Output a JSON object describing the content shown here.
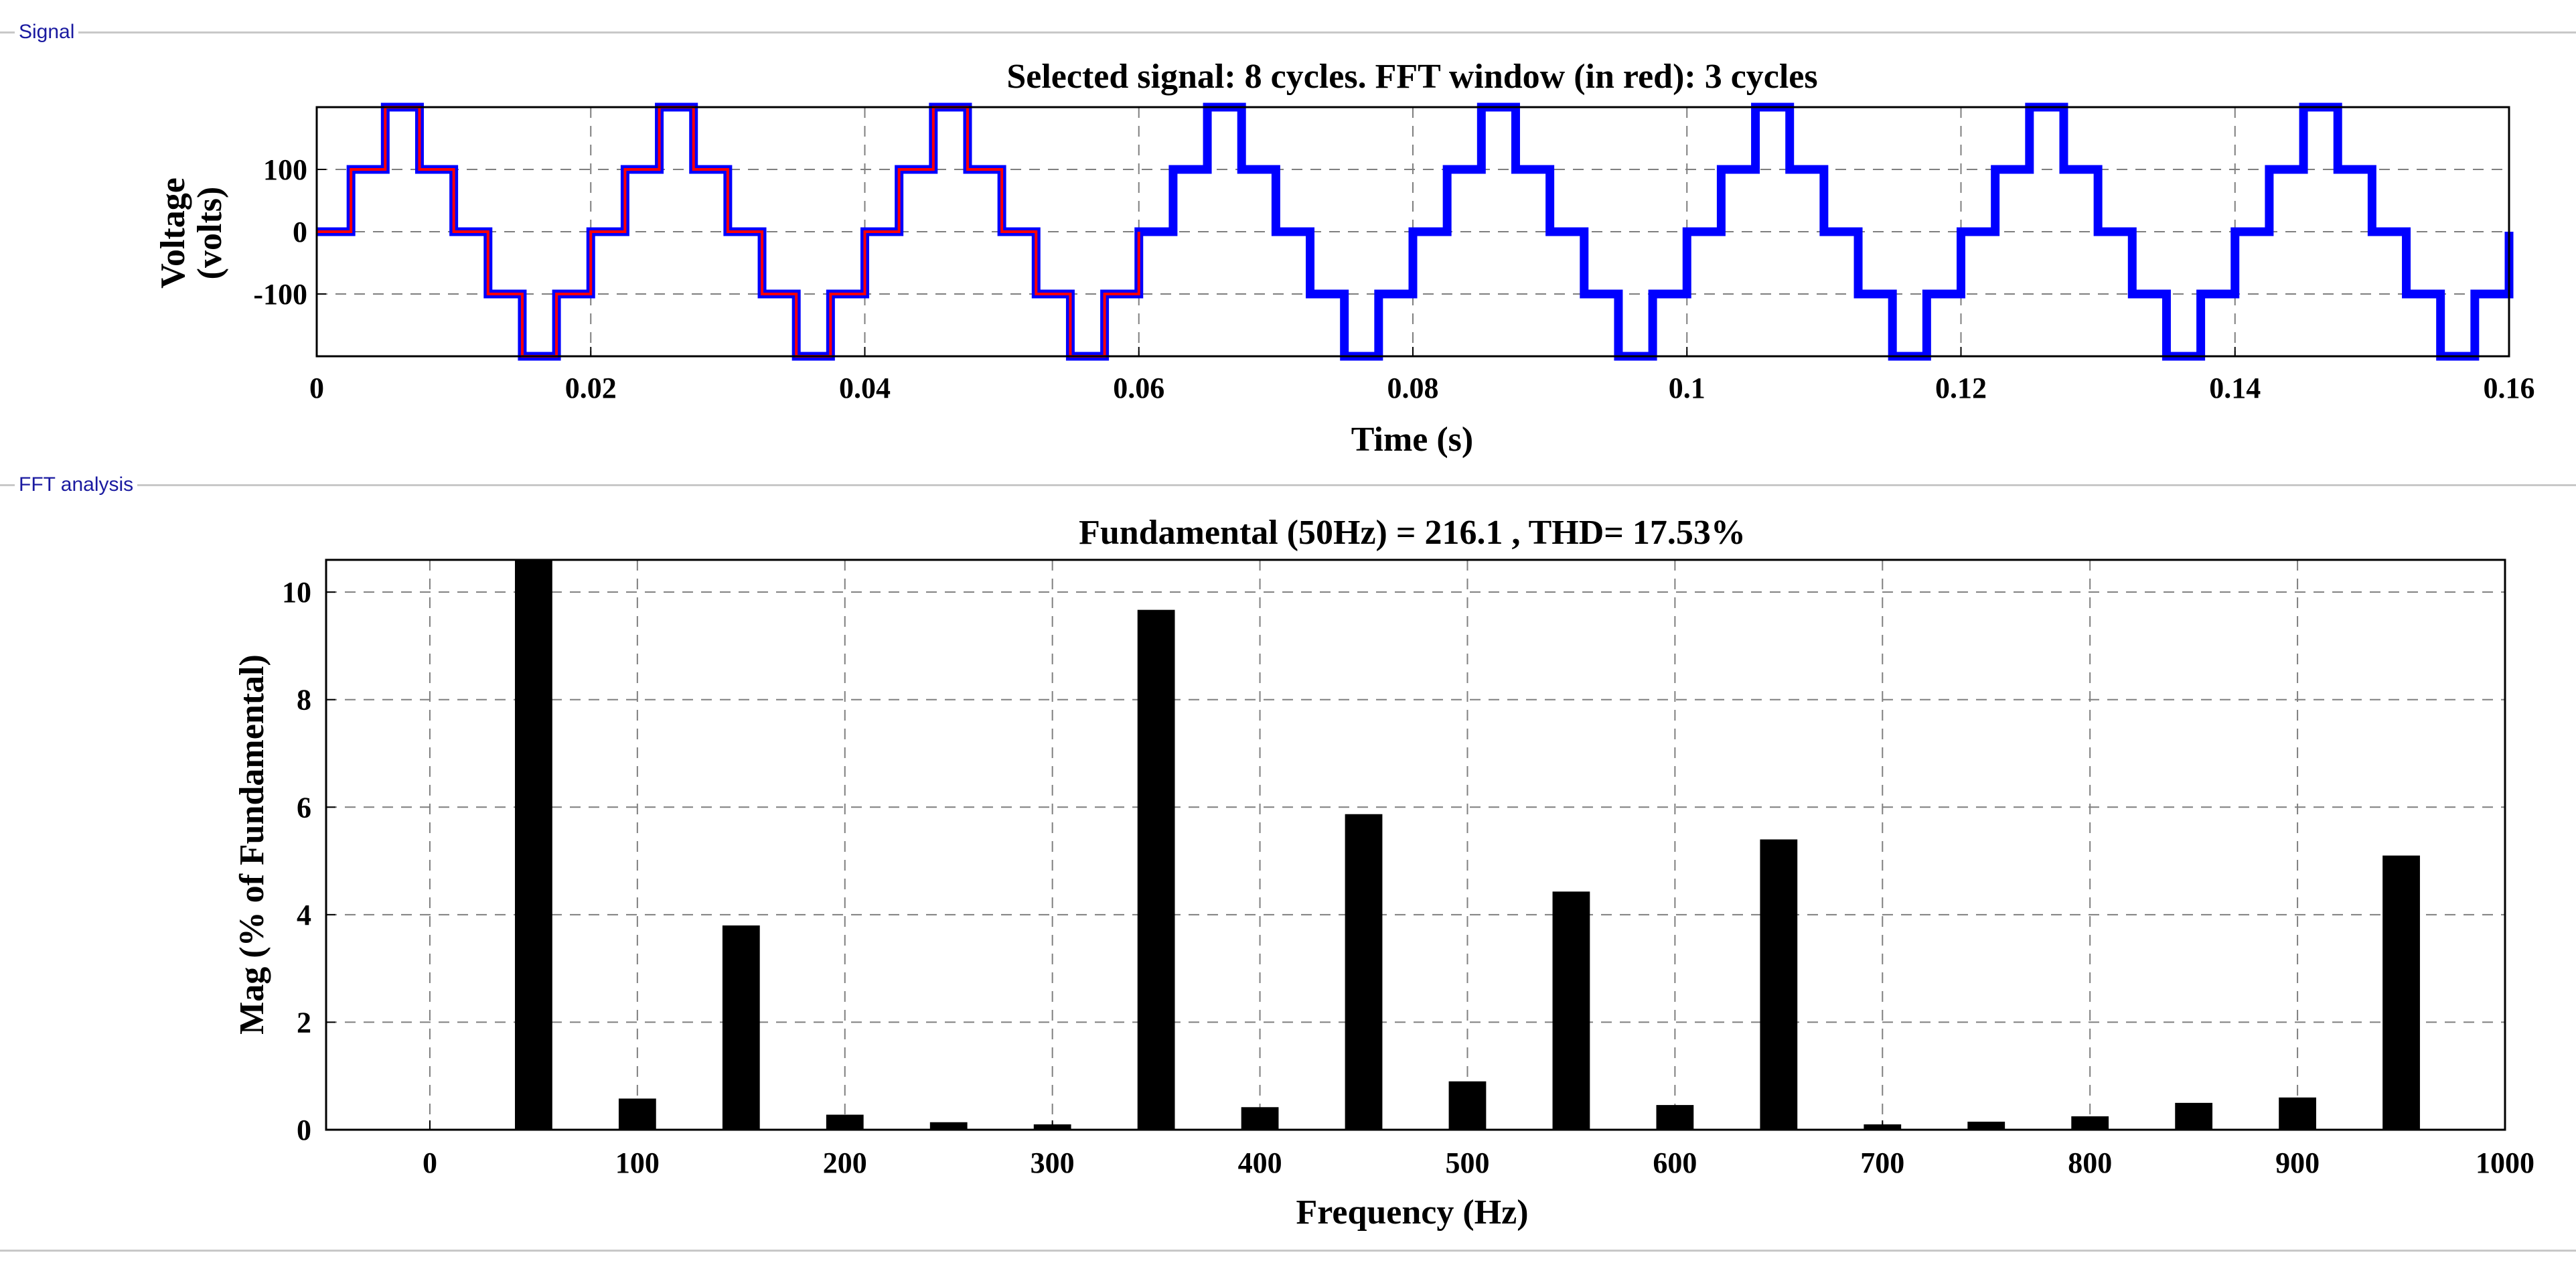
{
  "panels": {
    "signal_label": "Signal",
    "fft_label": "FFT analysis"
  },
  "colors": {
    "signal": "#0000ff",
    "fft_window": "#ff0000",
    "bars": "#000000",
    "grid": "#7f7f7f"
  },
  "chart_data": [
    {
      "type": "line",
      "title": "Selected signal: 8 cycles. FFT window (in red): 3 cycles",
      "xlabel": "Time (s)",
      "ylabel_lines": [
        "Voltage",
        "(volts)"
      ],
      "xlim": [
        0,
        0.16
      ],
      "ylim": [
        -200,
        200
      ],
      "xticks": [
        0,
        0.02,
        0.04,
        0.06,
        0.08,
        0.1,
        0.12,
        0.14,
        0.16
      ],
      "xtick_labels": [
        "0",
        "0.02",
        "0.04",
        "0.06",
        "0.08",
        "0.1",
        "0.12",
        "0.14",
        "0.16"
      ],
      "yticks": [
        -100,
        0,
        100
      ],
      "ytick_labels": [
        "-100",
        "0",
        "100"
      ],
      "grid": true,
      "frequency_hz": 50,
      "cycles": 8,
      "fft_window_cycles": 3,
      "waveform_levels": [
        0,
        100,
        200,
        100,
        0,
        -100,
        -200,
        -100
      ],
      "waveform_step_s": 0.0025
    },
    {
      "type": "bar",
      "title": "Fundamental (50Hz) = 216.1 , THD= 17.53%",
      "xlabel": "Frequency (Hz)",
      "ylabel": "Mag (% of Fundamental)",
      "xlim": [
        -50,
        1000
      ],
      "ylim": [
        0,
        10.6
      ],
      "xticks": [
        0,
        100,
        200,
        300,
        400,
        500,
        600,
        700,
        800,
        900,
        1000
      ],
      "xtick_labels": [
        "0",
        "100",
        "200",
        "300",
        "400",
        "500",
        "600",
        "700",
        "800",
        "900",
        "1000"
      ],
      "yticks": [
        0,
        2,
        4,
        6,
        8,
        10
      ],
      "ytick_labels": [
        "0",
        "2",
        "4",
        "6",
        "8",
        "10"
      ],
      "grid": true,
      "bar_width_hz": 18,
      "x": [
        50,
        100,
        150,
        200,
        250,
        300,
        350,
        400,
        450,
        500,
        550,
        600,
        650,
        700,
        750,
        800,
        850,
        900,
        950
      ],
      "values": [
        10.6,
        0.58,
        3.8,
        0.28,
        0.14,
        0.1,
        9.67,
        0.42,
        5.87,
        0.9,
        4.43,
        0.46,
        5.4,
        0.1,
        0.15,
        0.25,
        0.5,
        0.6,
        5.1
      ]
    }
  ]
}
